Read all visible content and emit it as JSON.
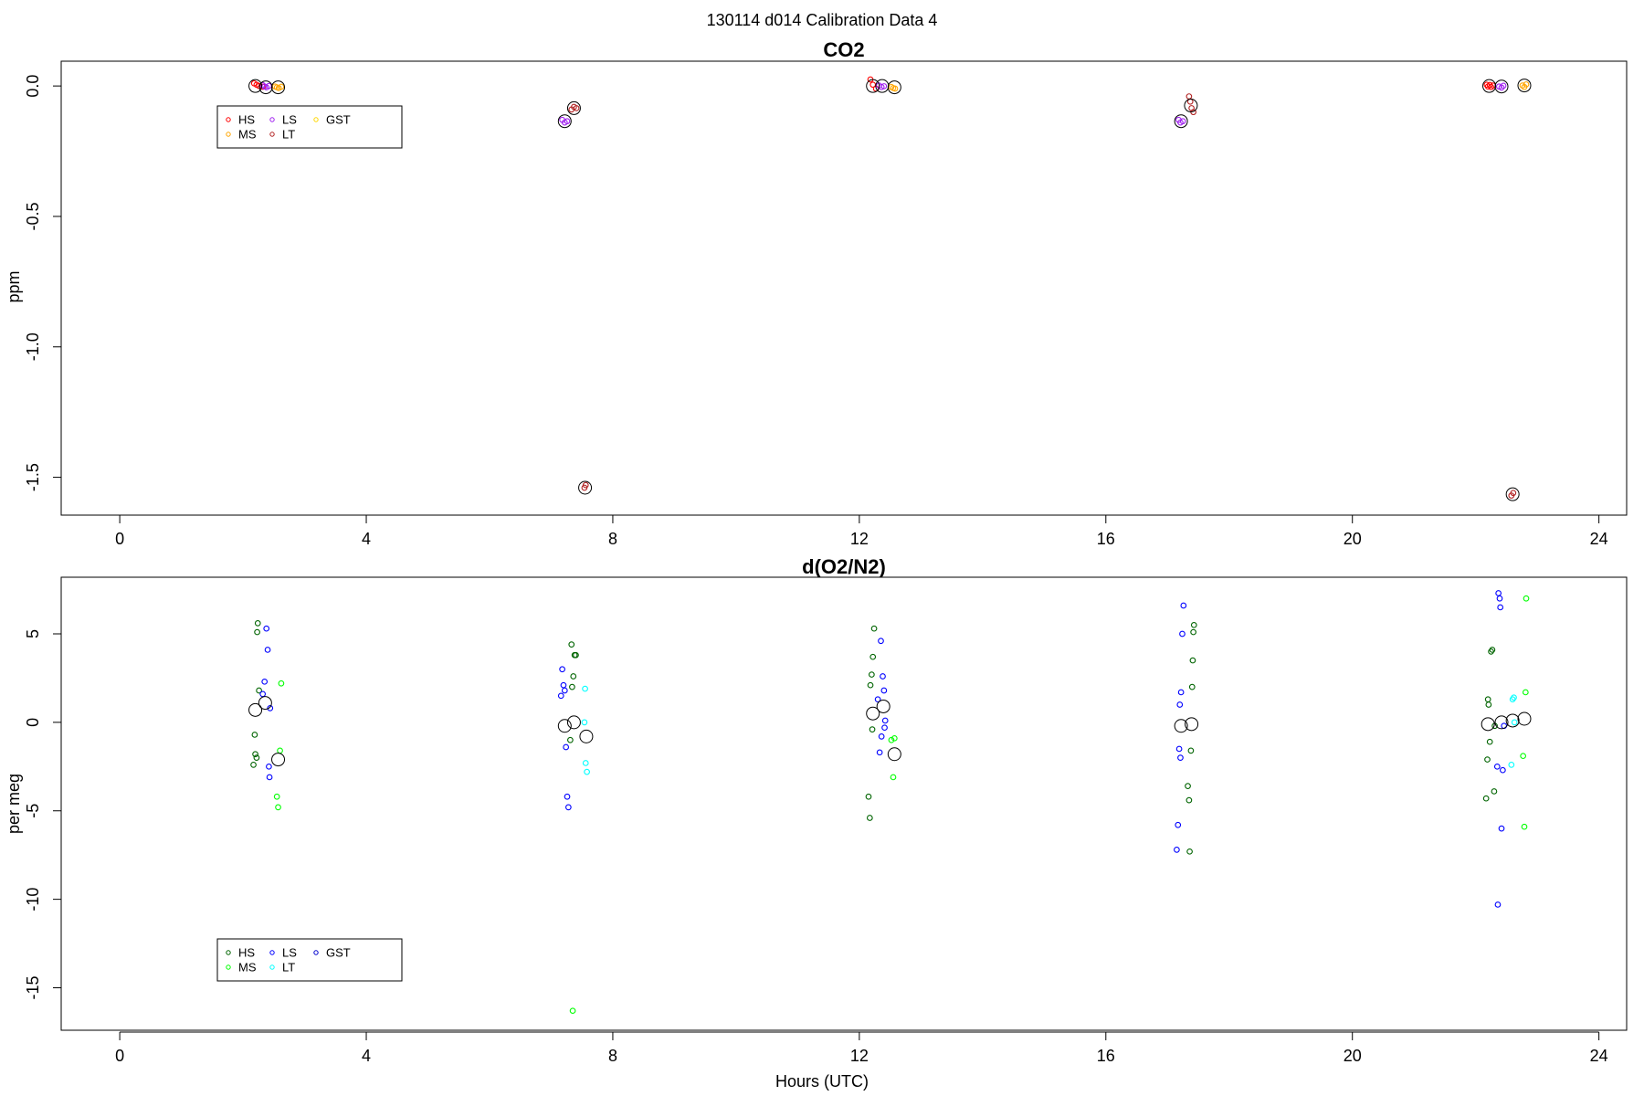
{
  "figure": {
    "suptitle": "130114   d014   Calibration Data 4",
    "xlabel": "Hours (UTC)"
  },
  "chart_data": [
    {
      "type": "scatter",
      "title": "CO2",
      "xlabel": "",
      "ylabel": "ppm",
      "xlim": [
        -0.95,
        24.45
      ],
      "ylim": [
        -1.645,
        0.095
      ],
      "xticks": [
        0,
        4,
        8,
        12,
        16,
        20,
        24
      ],
      "yticks": [
        0.0,
        -0.5,
        -1.0,
        -1.5
      ],
      "ytick_labels": [
        "0.0",
        "-0.5",
        "-1.0",
        "-1.5"
      ],
      "legend": {
        "placement": "top-left",
        "columns": 3,
        "entries": [
          "HS",
          "MS",
          "LS",
          "LT",
          "GST"
        ]
      },
      "series": [
        {
          "name": "HS",
          "color": "#ff0000",
          "points": [
            [
              2.18,
              0.01
            ],
            [
              2.22,
              0.005
            ],
            [
              2.26,
              0.0
            ],
            [
              2.32,
              -0.003
            ],
            [
              12.18,
              0.025
            ],
            [
              12.22,
              0.005
            ],
            [
              12.27,
              -0.01
            ],
            [
              22.18,
              0.005
            ],
            [
              22.2,
              -0.002
            ],
            [
              22.23,
              0.004
            ],
            [
              22.25,
              -0.004
            ],
            [
              22.28,
              0.002
            ]
          ]
        },
        {
          "name": "MS",
          "color": "#ffa500",
          "points": [
            [
              2.52,
              -0.002
            ],
            [
              2.55,
              -0.005
            ],
            [
              2.58,
              -0.008
            ],
            [
              2.62,
              -0.003
            ],
            [
              12.52,
              -0.004
            ],
            [
              12.55,
              -0.008
            ],
            [
              12.58,
              -0.01
            ],
            [
              22.76,
              0.002
            ],
            [
              22.79,
              -0.004
            ],
            [
              22.82,
              0.006
            ]
          ]
        },
        {
          "name": "LS",
          "color": "#a020f0",
          "points": [
            [
              2.32,
              0.003
            ],
            [
              2.35,
              -0.002
            ],
            [
              2.38,
              -0.005
            ],
            [
              2.42,
              0.0
            ],
            [
              7.18,
              -0.13
            ],
            [
              7.22,
              -0.14
            ],
            [
              7.26,
              -0.135
            ],
            [
              12.32,
              0.002
            ],
            [
              12.36,
              -0.004
            ],
            [
              12.4,
              -0.001
            ],
            [
              17.18,
              -0.13
            ],
            [
              17.21,
              -0.14
            ],
            [
              17.25,
              -0.135
            ],
            [
              22.38,
              -0.002
            ],
            [
              22.42,
              -0.006
            ],
            [
              22.45,
              0.001
            ]
          ]
        },
        {
          "name": "LT",
          "color": "#b22222",
          "points": [
            [
              7.33,
              -0.09
            ],
            [
              7.37,
              -0.08
            ],
            [
              7.41,
              -0.085
            ],
            [
              7.54,
              -1.54
            ],
            [
              7.56,
              -1.53
            ],
            [
              17.35,
              -0.04
            ],
            [
              17.37,
              -0.06
            ],
            [
              17.39,
              -0.085
            ],
            [
              17.42,
              -0.1
            ],
            [
              22.58,
              -1.57
            ],
            [
              22.61,
              -1.56
            ]
          ]
        },
        {
          "name": "GST",
          "color": "#ffd700",
          "points": []
        }
      ],
      "means": [
        [
          2.2,
          0.0
        ],
        [
          2.37,
          -0.005
        ],
        [
          2.57,
          -0.005
        ],
        [
          7.22,
          -0.135
        ],
        [
          7.37,
          -0.085
        ],
        [
          7.55,
          -1.54
        ],
        [
          12.22,
          0.0
        ],
        [
          12.37,
          0.0
        ],
        [
          12.57,
          -0.005
        ],
        [
          17.22,
          -0.135
        ],
        [
          17.38,
          -0.075
        ],
        [
          22.22,
          0.0
        ],
        [
          22.42,
          -0.002
        ],
        [
          22.6,
          -1.565
        ],
        [
          22.79,
          0.002
        ]
      ]
    },
    {
      "type": "scatter",
      "title": "d(O2/N2)",
      "xlabel": "Hours (UTC)",
      "ylabel": "per meg",
      "xlim": [
        -0.95,
        24.45
      ],
      "ylim": [
        -17.4,
        8.2
      ],
      "xticks": [
        0,
        4,
        8,
        12,
        16,
        20,
        24
      ],
      "yticks": [
        5,
        0,
        -5,
        -10,
        -15
      ],
      "ytick_labels": [
        "5",
        "0",
        "-5",
        "-10",
        "-15"
      ],
      "legend": {
        "placement": "bottom-left",
        "columns": 3,
        "entries": [
          "HS",
          "MS",
          "LS",
          "LT",
          "GST"
        ]
      },
      "series": [
        {
          "name": "HS",
          "color": "#006400",
          "points": [
            [
              2.17,
              -2.4
            ],
            [
              2.19,
              -0.7
            ],
            [
              2.2,
              -1.8
            ],
            [
              2.22,
              -2.0
            ],
            [
              2.23,
              5.1
            ],
            [
              2.24,
              5.6
            ],
            [
              2.26,
              1.8
            ],
            [
              7.33,
              4.4
            ],
            [
              7.36,
              2.6
            ],
            [
              7.38,
              3.8
            ],
            [
              7.4,
              3.8
            ],
            [
              7.34,
              2.0
            ],
            [
              7.31,
              -1.0
            ],
            [
              12.15,
              -4.2
            ],
            [
              12.17,
              -5.4
            ],
            [
              12.18,
              2.1
            ],
            [
              12.2,
              2.7
            ],
            [
              12.22,
              3.7
            ],
            [
              12.24,
              5.3
            ],
            [
              12.21,
              -0.4
            ],
            [
              17.33,
              -3.6
            ],
            [
              17.35,
              -4.4
            ],
            [
              17.36,
              -7.3
            ],
            [
              17.38,
              -1.6
            ],
            [
              17.4,
              2.0
            ],
            [
              17.41,
              3.5
            ],
            [
              17.42,
              5.1
            ],
            [
              17.43,
              5.5
            ],
            [
              22.17,
              -4.3
            ],
            [
              22.19,
              -2.1
            ],
            [
              22.2,
              1.3
            ],
            [
              22.21,
              1.0
            ],
            [
              22.23,
              -1.1
            ],
            [
              22.25,
              4.0
            ],
            [
              22.27,
              4.1
            ],
            [
              22.3,
              -3.9
            ],
            [
              22.31,
              -0.2
            ]
          ]
        },
        {
          "name": "MS",
          "color": "#00ff00",
          "points": [
            [
              2.55,
              -4.2
            ],
            [
              2.57,
              -4.8
            ],
            [
              2.6,
              -1.6
            ],
            [
              2.62,
              2.2
            ],
            [
              7.35,
              -16.3
            ],
            [
              12.52,
              -1.0
            ],
            [
              12.55,
              -3.1
            ],
            [
              12.57,
              -0.9
            ],
            [
              22.77,
              -1.9
            ],
            [
              22.79,
              -5.9
            ],
            [
              22.81,
              1.7
            ],
            [
              22.82,
              7.0
            ]
          ]
        },
        {
          "name": "LS",
          "color": "#0000ff",
          "points": [
            [
              2.32,
              1.6
            ],
            [
              2.35,
              2.3
            ],
            [
              2.38,
              5.3
            ],
            [
              2.4,
              4.1
            ],
            [
              2.42,
              -2.5
            ],
            [
              2.43,
              -3.1
            ],
            [
              2.44,
              0.8
            ],
            [
              7.16,
              1.5
            ],
            [
              7.18,
              3.0
            ],
            [
              7.2,
              2.1
            ],
            [
              7.22,
              1.8
            ],
            [
              7.24,
              -1.4
            ],
            [
              7.26,
              -4.2
            ],
            [
              7.28,
              -4.8
            ],
            [
              12.3,
              1.3
            ],
            [
              12.33,
              -1.7
            ],
            [
              12.35,
              4.6
            ],
            [
              12.36,
              -0.8
            ],
            [
              12.38,
              2.6
            ],
            [
              12.4,
              1.8
            ],
            [
              12.41,
              -0.3
            ],
            [
              12.42,
              0.1
            ],
            [
              17.15,
              -7.2
            ],
            [
              17.17,
              -5.8
            ],
            [
              17.19,
              -1.5
            ],
            [
              17.2,
              1.0
            ],
            [
              17.22,
              1.7
            ],
            [
              17.24,
              5.0
            ],
            [
              17.26,
              6.6
            ],
            [
              17.21,
              -2.0
            ],
            [
              22.35,
              -2.5
            ],
            [
              22.37,
              7.3
            ],
            [
              22.39,
              7.0
            ],
            [
              22.4,
              6.5
            ],
            [
              22.42,
              -6.0
            ],
            [
              22.44,
              -2.7
            ],
            [
              22.46,
              -0.2
            ],
            [
              22.36,
              -10.3
            ]
          ]
        },
        {
          "name": "LT",
          "color": "#00ffff",
          "points": [
            [
              7.55,
              1.9
            ],
            [
              7.56,
              -2.3
            ],
            [
              7.58,
              -2.8
            ],
            [
              7.54,
              0.0
            ],
            [
              22.58,
              -2.4
            ],
            [
              22.6,
              1.3
            ],
            [
              22.62,
              1.4
            ],
            [
              22.63,
              0.0
            ]
          ]
        },
        {
          "name": "GST",
          "color": "#0000cd",
          "points": []
        }
      ],
      "means": [
        [
          2.2,
          0.7
        ],
        [
          2.36,
          1.1
        ],
        [
          2.57,
          -2.1
        ],
        [
          7.22,
          -0.2
        ],
        [
          7.37,
          0.0
        ],
        [
          7.57,
          -0.8
        ],
        [
          12.22,
          0.5
        ],
        [
          12.39,
          0.9
        ],
        [
          12.57,
          -1.8
        ],
        [
          17.22,
          -0.2
        ],
        [
          17.39,
          -0.1
        ],
        [
          22.2,
          -0.1
        ],
        [
          22.42,
          0.0
        ],
        [
          22.6,
          0.1
        ],
        [
          22.79,
          0.2
        ]
      ]
    }
  ]
}
